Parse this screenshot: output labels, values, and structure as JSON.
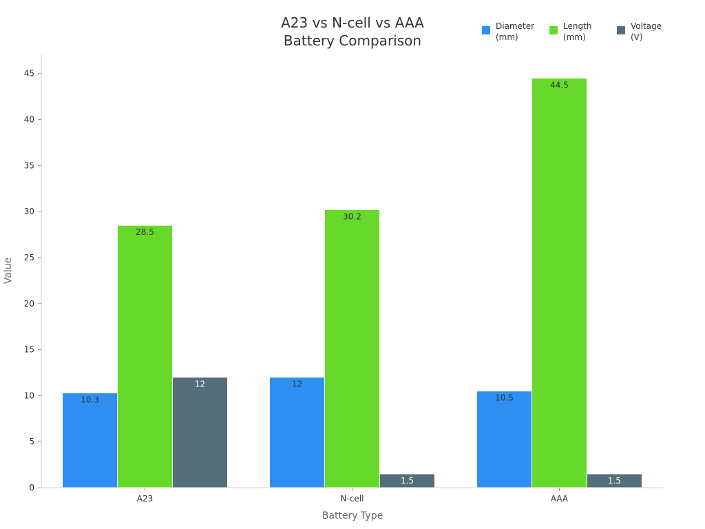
{
  "chart_data": {
    "type": "bar",
    "title": [
      "A23 vs N-cell vs AAA",
      "Battery Comparison"
    ],
    "xlabel": "Battery Type",
    "ylabel": "Value",
    "categories": [
      "A23",
      "N-cell",
      "AAA"
    ],
    "series": [
      {
        "name": "Diameter (mm)",
        "name_lines": [
          "Diameter",
          "(mm)"
        ],
        "color": "#2F8FF2",
        "values": [
          10.3,
          12,
          10.5
        ]
      },
      {
        "name": "Length (mm)",
        "name_lines": [
          "Length",
          "(mm)"
        ],
        "color": "#67D92A",
        "values": [
          28.5,
          30.2,
          44.5
        ]
      },
      {
        "name": "Voltage (V)",
        "name_lines": [
          "Voltage",
          "(V)"
        ],
        "color": "#546E7A",
        "values": [
          12,
          1.5,
          1.5
        ]
      }
    ],
    "ylim": [
      0,
      45
    ],
    "yticks": [
      0,
      5,
      10,
      15,
      20,
      25,
      30,
      35,
      40,
      45
    ],
    "grid": false,
    "legend_position": "top-right",
    "label_colors": {
      "light": "#ffffff",
      "dark": "#333333"
    }
  }
}
